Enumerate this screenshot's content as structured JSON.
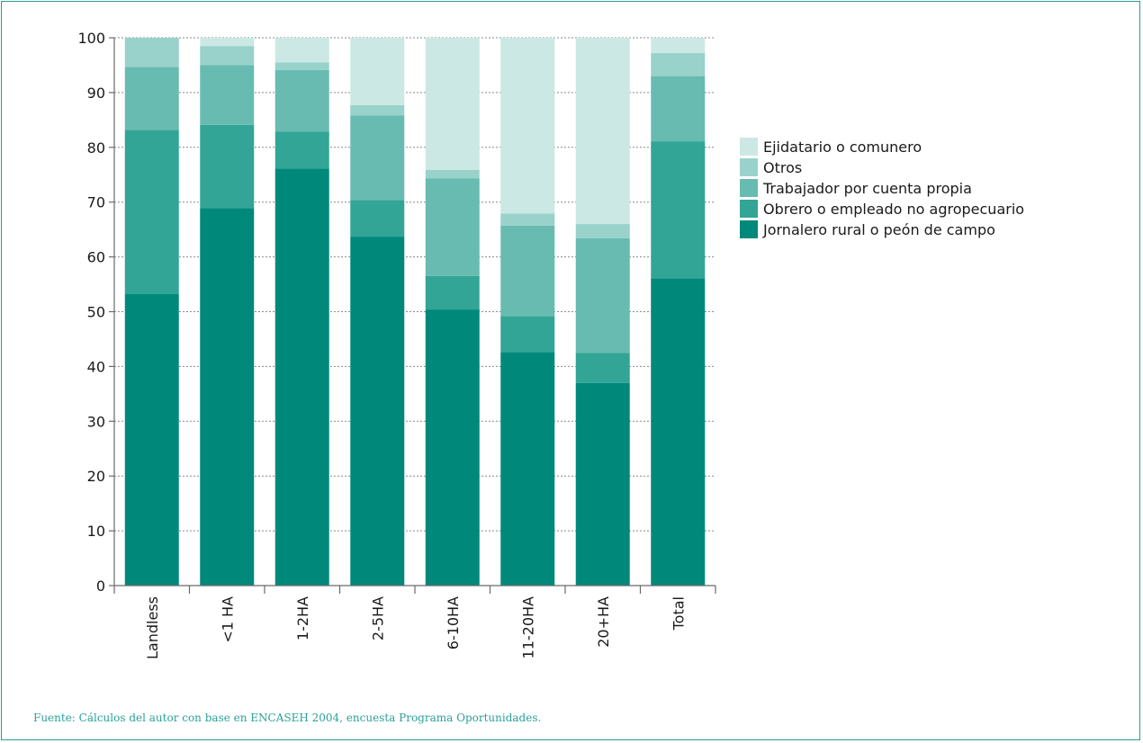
{
  "chart_data": {
    "type": "bar",
    "stacked": true,
    "categories": [
      "Landless",
      "<1 HA",
      "1-2HA",
      "2-5HA",
      "6-10HA",
      "11-20HA",
      "20+HA",
      "Total"
    ],
    "series": [
      {
        "name": "Jornalero rural o peón de campo",
        "color": "#00897b",
        "values": [
          53.2,
          68.9,
          76.1,
          63.7,
          50.4,
          42.6,
          37.0,
          56.1
        ]
      },
      {
        "name": "Obrero o empleado no agropecuario",
        "color": "#32a596",
        "values": [
          30.0,
          15.2,
          6.8,
          6.7,
          6.1,
          6.6,
          5.5,
          25.0
        ]
      },
      {
        "name": "Trabajador por cuenta propia",
        "color": "#68bbb1",
        "values": [
          11.5,
          10.9,
          11.2,
          15.4,
          17.8,
          16.5,
          20.9,
          11.9
        ]
      },
      {
        "name": "Otros",
        "color": "#98d2ca",
        "values": [
          5.3,
          3.5,
          1.4,
          1.9,
          1.6,
          2.2,
          2.6,
          4.2
        ]
      },
      {
        "name": "Ejidatario o comunero",
        "color": "#cce8e4",
        "values": [
          0.0,
          1.5,
          4.5,
          12.3,
          24.1,
          32.1,
          34.0,
          2.8
        ]
      }
    ],
    "ylim": [
      0,
      100
    ],
    "yticks": [
      0,
      10,
      20,
      30,
      40,
      50,
      60,
      70,
      80,
      90,
      100
    ],
    "grid": true,
    "legend_position": "right",
    "legend_order": [
      "Ejidatario o comunero",
      "Otros",
      "Trabajador por cuenta propia",
      "Obrero o empleado no agropecuario",
      "Jornalero rural o peón de campo"
    ],
    "xlabel": "",
    "ylabel": "",
    "title": ""
  },
  "source_note": "Fuente: Cálculos del autor con base en ENCASEH 2004, encuesta Programa Oportunidades."
}
